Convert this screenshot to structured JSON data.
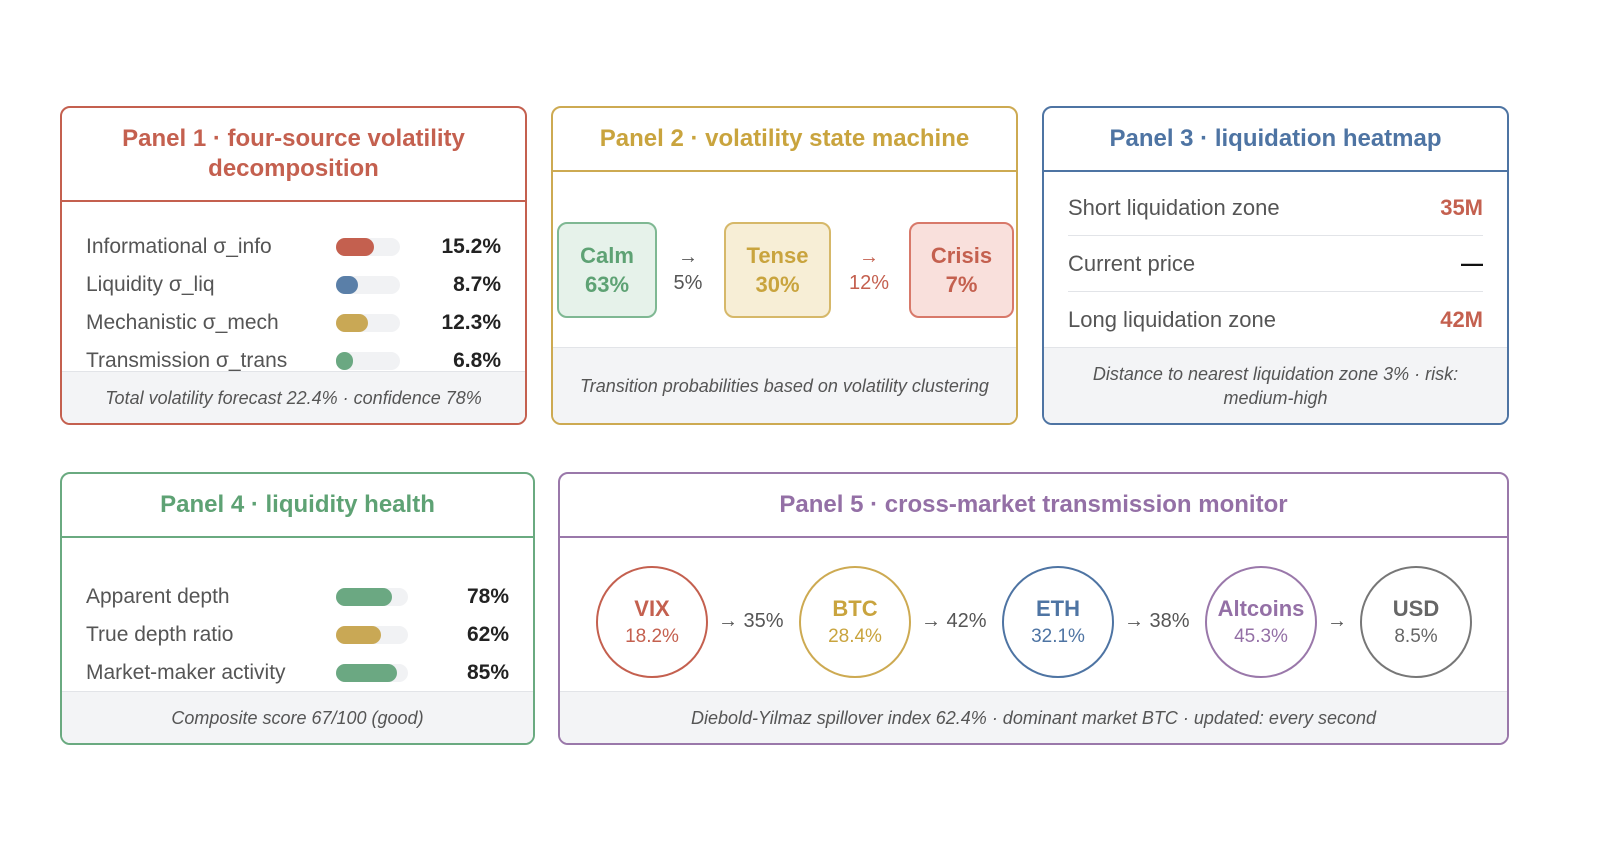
{
  "colors": {
    "red": "#c4604f",
    "yellow": "#cdaa52",
    "blue": "#4e74a3",
    "green": "#6aaa80",
    "purple": "#9a78aa",
    "gray": "#777777"
  },
  "panel1": {
    "title": "Panel 1 · four-source volatility decomposition",
    "rows": [
      {
        "label": "Informational σ_info",
        "value": "15.2%",
        "fill": 0.6
      },
      {
        "label": "Liquidity σ_liq",
        "value": "8.7%",
        "fill": 0.34
      },
      {
        "label": "Mechanistic σ_mech",
        "value": "12.3%",
        "fill": 0.5
      },
      {
        "label": "Transmission σ_trans",
        "value": "6.8%",
        "fill": 0.27
      }
    ],
    "footer": "Total volatility forecast 22.4% · confidence 78%"
  },
  "panel2": {
    "title": "Panel 2 · volatility state machine",
    "states": [
      {
        "name": "Calm",
        "pct": "63%"
      },
      {
        "name": "Tense",
        "pct": "30%"
      },
      {
        "name": "Crisis",
        "pct": "7%"
      }
    ],
    "transitions": [
      {
        "arrow": "→",
        "pct": "5%"
      },
      {
        "arrow": "→",
        "pct": "12%"
      }
    ],
    "footer": "Transition probabilities based on volatility clustering"
  },
  "panel3": {
    "title": "Panel 3 · liquidation heatmap",
    "rows": [
      {
        "label": "Short liquidation zone",
        "value": "35M"
      },
      {
        "label": "Current price",
        "value": "—"
      },
      {
        "label": "Long liquidation zone",
        "value": "42M"
      }
    ],
    "footer": "Distance to nearest liquidation zone 3% · risk: medium-high"
  },
  "panel4": {
    "title": "Panel 4 · liquidity health",
    "rows": [
      {
        "label": "Apparent depth",
        "value": "78%",
        "fill": 0.78
      },
      {
        "label": "True depth ratio",
        "value": "62%",
        "fill": 0.62
      },
      {
        "label": "Market-maker activity",
        "value": "85%",
        "fill": 0.85
      }
    ],
    "footer": "Composite score 67/100 (good)"
  },
  "panel5": {
    "title": "Panel 5 · cross-market transmission monitor",
    "nodes": [
      {
        "name": "VIX",
        "pct": "18.2%"
      },
      {
        "name": "BTC",
        "pct": "28.4%"
      },
      {
        "name": "ETH",
        "pct": "32.1%"
      },
      {
        "name": "Altcoins",
        "pct": "45.3%"
      },
      {
        "name": "USD",
        "pct": "8.5%"
      }
    ],
    "links": [
      "→ 35%",
      "→ 42%",
      "→ 38%",
      "→"
    ],
    "footer": "Diebold-Yilmaz spillover index 62.4% · dominant market BTC · updated: every second"
  }
}
